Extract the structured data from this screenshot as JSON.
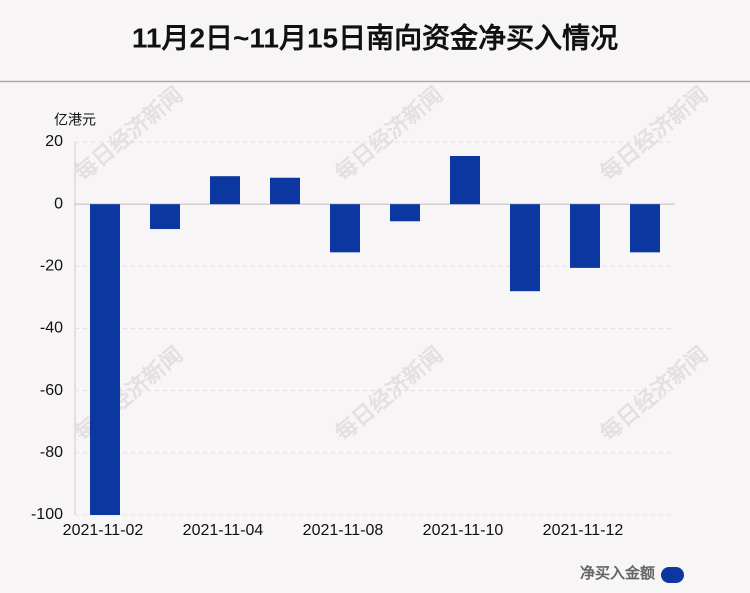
{
  "chart_data": {
    "type": "bar",
    "title": "11月2日~11月15日南向资金净买入情况",
    "y_axis_label": "亿港元",
    "watermark": "每日经济新闻",
    "categories": [
      "2021-11-02",
      null,
      "2021-11-04",
      null,
      "2021-11-08",
      null,
      "2021-11-10",
      null,
      "2021-11-12",
      null
    ],
    "series": [
      {
        "name": "净买入金额",
        "color": "#0d37a0",
        "values": [
          -100,
          -8,
          9,
          8.5,
          -15.5,
          -5.5,
          15.5,
          -28,
          -20.5,
          -15.5
        ]
      }
    ],
    "ylim": [
      -100,
      20
    ],
    "yticks": [
      -100,
      -80,
      -60,
      -40,
      -20,
      0,
      20
    ],
    "grid": true,
    "legend": "bottom-right"
  }
}
